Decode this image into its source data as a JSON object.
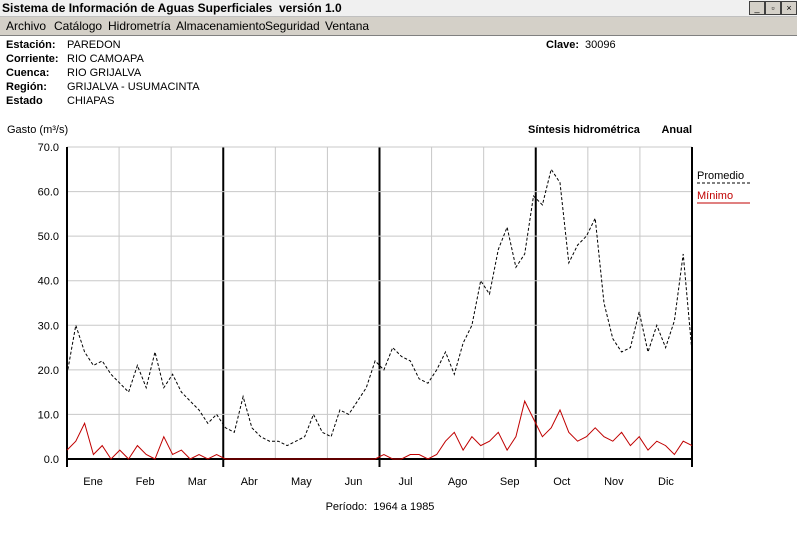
{
  "window": {
    "title": "Sistema de Información de Aguas Superficiales  versión 1.0"
  },
  "menu": [
    "Archivo",
    "Catálogo",
    "Hidrometría",
    "Almacenamiento",
    "Seguridad",
    "Ventana"
  ],
  "station": {
    "fields": [
      {
        "label": "Estación:",
        "value": "PAREDON"
      },
      {
        "label": "Corriente:",
        "value": "RIO CAMOAPA"
      },
      {
        "label": "Cuenca:",
        "value": "RIO GRIJALVA"
      },
      {
        "label": "Región:",
        "value": "GRIJALVA - USUMACINTA"
      },
      {
        "label": "Estado",
        "value": "CHIAPAS"
      }
    ],
    "clave_label": "Clave:",
    "clave": "30096"
  },
  "chart_data": {
    "type": "line",
    "title": "Síntesis hidrométrica",
    "subtitle": "Anual",
    "y_label": "Gasto (m³/s)",
    "period": "Período:  1964 a 1985",
    "months": [
      "Ene",
      "Feb",
      "Mar",
      "Abr",
      "May",
      "Jun",
      "Jul",
      "Ago",
      "Sep",
      "Oct",
      "Nov",
      "Dic"
    ],
    "ylim": [
      0,
      70
    ],
    "yticks": [
      {
        "value": 0,
        "label": "0.0"
      },
      {
        "value": 10,
        "label": "10.0"
      },
      {
        "value": 20,
        "label": "20.0"
      },
      {
        "value": 30,
        "label": "30.0"
      },
      {
        "value": 40,
        "label": "40.0"
      },
      {
        "value": 50,
        "label": "50.0"
      },
      {
        "value": 60,
        "label": "60.0"
      },
      {
        "value": 70,
        "label": "70.0"
      }
    ],
    "grid": true,
    "series": [
      {
        "name": "Promedio",
        "color": "#000000",
        "dashed": true,
        "values": [
          19,
          30,
          24,
          21,
          22,
          19,
          17,
          15,
          21,
          16,
          24,
          16,
          19,
          15,
          13,
          11,
          8,
          10,
          7,
          6,
          14,
          7,
          5,
          4,
          4,
          3,
          4,
          5,
          10,
          6,
          5,
          11,
          10,
          13,
          16,
          22,
          20,
          25,
          23,
          22,
          18,
          17,
          20,
          24,
          19,
          26,
          30,
          40,
          37,
          47,
          52,
          43,
          46,
          59,
          57,
          65,
          62,
          44,
          48,
          50,
          54,
          35,
          27,
          24,
          25,
          33,
          24,
          30,
          25,
          31,
          46,
          24
        ]
      },
      {
        "name": "Mínimo",
        "color": "#c00000",
        "dashed": false,
        "values": [
          2,
          4,
          8,
          1,
          3,
          0,
          2,
          0,
          3,
          1,
          0,
          5,
          1,
          2,
          0,
          1,
          0,
          1,
          0,
          0,
          0,
          0,
          0,
          0,
          0,
          0,
          0,
          0,
          0,
          0,
          0,
          0,
          0,
          0,
          0,
          0,
          1,
          0,
          0,
          1,
          1,
          0,
          1,
          4,
          6,
          2,
          5,
          3,
          4,
          6,
          2,
          5,
          13,
          9,
          5,
          7,
          11,
          6,
          4,
          5,
          7,
          5,
          4,
          6,
          3,
          5,
          2,
          4,
          3,
          1,
          4,
          3
        ]
      }
    ]
  }
}
